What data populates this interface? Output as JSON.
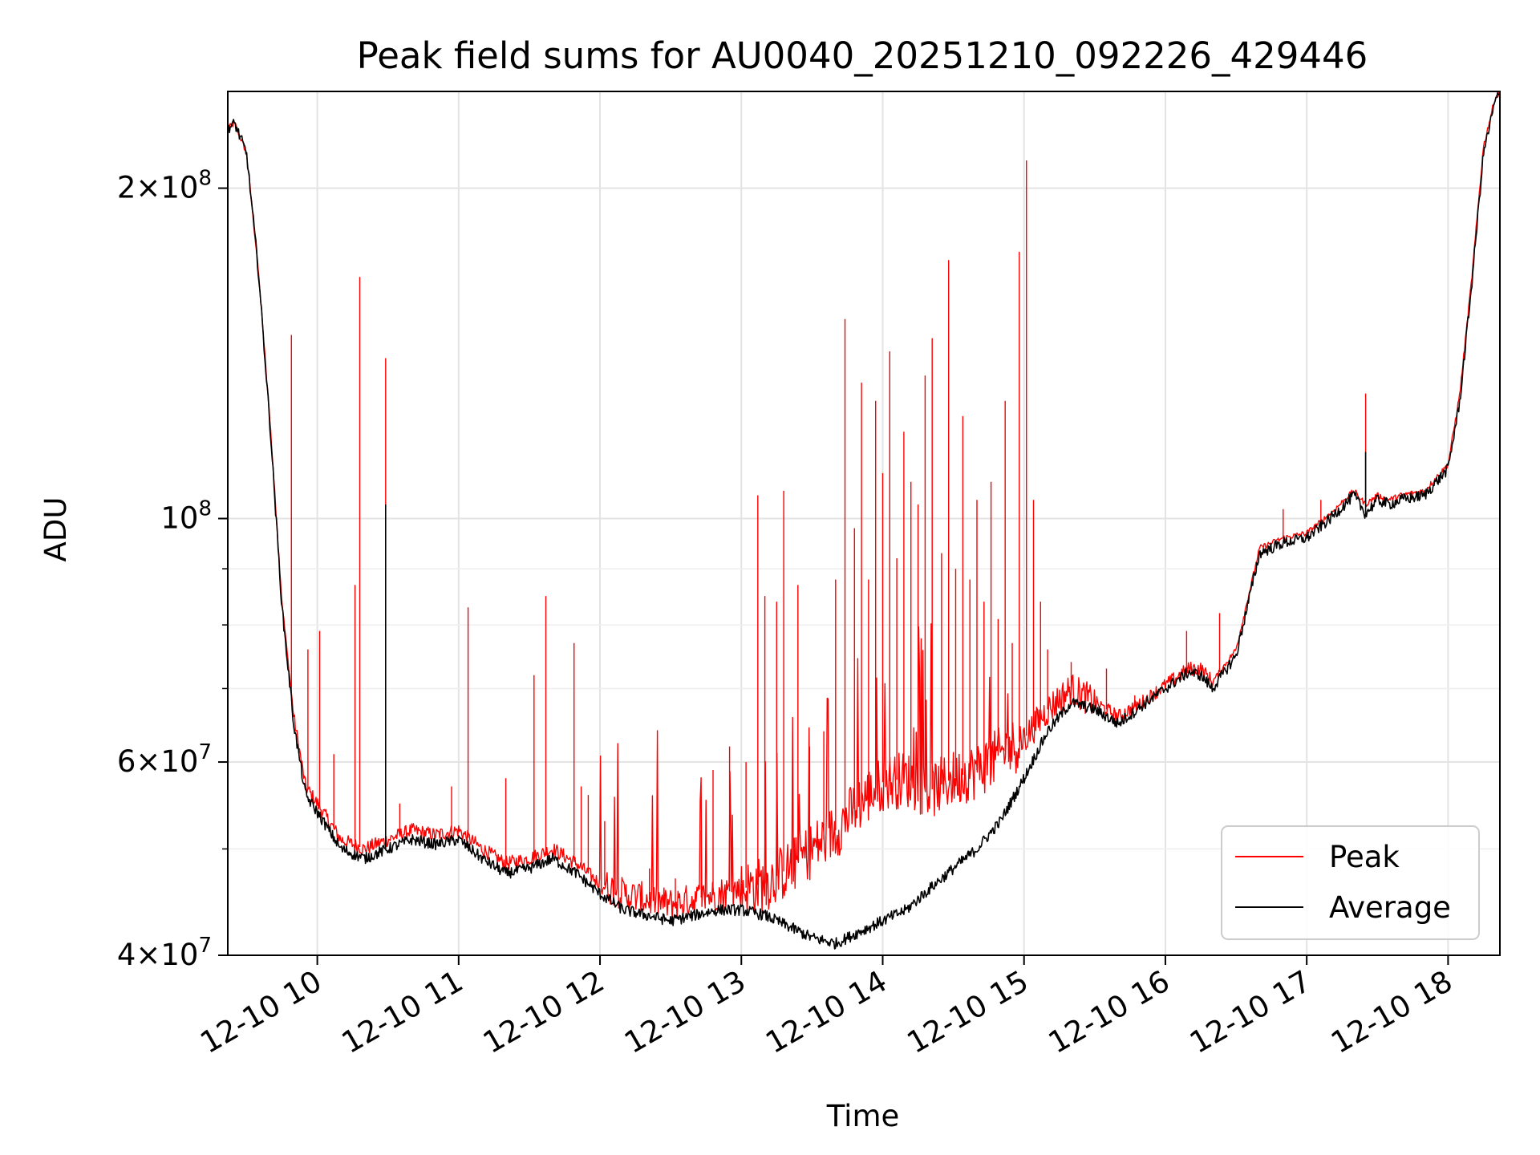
{
  "chart_data": {
    "type": "line",
    "title": "Peak field sums for AU0040_20251210_092226_429446",
    "xlabel": "Time",
    "ylabel": "ADU",
    "yscale": "log",
    "xlim": [
      "2025-12-10 09:22",
      "2025-12-10 18:22"
    ],
    "ylim": [
      40000000,
      245000000
    ],
    "grid": true,
    "legend_position": "lower-right",
    "x_tick_labels": [
      "12-10 10",
      "12-10 11",
      "12-10 12",
      "12-10 13",
      "12-10 14",
      "12-10 15",
      "12-10 16",
      "12-10 17",
      "12-10 18"
    ],
    "y_major_ticks": [
      {
        "value": 40000000,
        "mantissa": "4",
        "exponent": "7"
      },
      {
        "value": 60000000,
        "mantissa": "6",
        "exponent": "7"
      },
      {
        "value": 100000000,
        "mantissa": "",
        "exponent": "8"
      },
      {
        "value": 200000000,
        "mantissa": "2",
        "exponent": "8"
      }
    ],
    "y_minor_ticks": [
      50000000,
      70000000,
      80000000,
      90000000
    ],
    "series": [
      {
        "name": "Peak",
        "color": "#ff0000",
        "x": [
          "09:22",
          "09:25",
          "09:30",
          "09:35",
          "09:40",
          "09:45",
          "09:50",
          "09:55",
          "10:00",
          "10:10",
          "10:20",
          "10:30",
          "10:40",
          "10:50",
          "11:00",
          "11:10",
          "11:20",
          "11:30",
          "11:40",
          "11:50",
          "12:00",
          "12:10",
          "12:20",
          "12:30",
          "12:40",
          "12:50",
          "13:00",
          "13:10",
          "13:20",
          "13:30",
          "13:40",
          "13:50",
          "14:00",
          "14:10",
          "14:20",
          "14:30",
          "14:40",
          "14:50",
          "15:00",
          "15:10",
          "15:20",
          "15:30",
          "15:40",
          "15:50",
          "16:00",
          "16:10",
          "16:15",
          "16:20",
          "16:30",
          "16:40",
          "16:50",
          "17:00",
          "17:10",
          "17:20",
          "17:25",
          "17:30",
          "17:35",
          "17:40",
          "17:50",
          "18:00",
          "18:05",
          "18:10",
          "18:15",
          "18:20",
          "18:22"
        ],
        "y": [
          227000000,
          229000000,
          215000000,
          168000000,
          122000000,
          84000000,
          66000000,
          57000000,
          55000000,
          51000000,
          50000000,
          51000000,
          52000000,
          51500000,
          52000000,
          50000000,
          48500000,
          49000000,
          50000000,
          48500000,
          46500000,
          45500000,
          45000000,
          44500000,
          45000000,
          45500000,
          46000000,
          46500000,
          48000000,
          50000000,
          52000000,
          55000000,
          57500000,
          58000000,
          56500000,
          58000000,
          59000000,
          61000000,
          63000000,
          67000000,
          70000000,
          68000000,
          66000000,
          68000000,
          70500000,
          73000000,
          73000000,
          71000000,
          76000000,
          94000000,
          96000000,
          97000000,
          101000000,
          106000000,
          103000000,
          105000000,
          104000000,
          105000000,
          106000000,
          112000000,
          130000000,
          165000000,
          218000000,
          242000000,
          244000000
        ],
        "spikes": [
          [
            "09:49",
            147000000
          ],
          [
            "09:56",
            76000000
          ],
          [
            "10:01",
            79000000
          ],
          [
            "10:07",
            61000000
          ],
          [
            "10:16",
            87000000
          ],
          [
            "10:18",
            166000000
          ],
          [
            "10:29",
            140000000
          ],
          [
            "10:35",
            55000000
          ],
          [
            "10:57",
            57000000
          ],
          [
            "11:04",
            83000000
          ],
          [
            "11:20",
            58000000
          ],
          [
            "11:32",
            72000000
          ],
          [
            "11:37",
            85000000
          ],
          [
            "11:49",
            77000000
          ],
          [
            "11:52",
            57000000
          ],
          [
            "11:55",
            56000000
          ],
          [
            "12:02",
            53000000
          ],
          [
            "12:21",
            48000000
          ],
          [
            "12:32",
            47000000
          ],
          [
            "12:43",
            52000000
          ],
          [
            "12:48",
            59000000
          ],
          [
            "12:55",
            62000000
          ],
          [
            "13:02",
            60000000
          ],
          [
            "13:07",
            105000000
          ],
          [
            "13:10",
            85000000
          ],
          [
            "13:15",
            84000000
          ],
          [
            "13:18",
            106000000
          ],
          [
            "13:24",
            87000000
          ],
          [
            "13:29",
            62000000
          ],
          [
            "13:35",
            64000000
          ],
          [
            "13:40",
            88000000
          ],
          [
            "13:44",
            152000000
          ],
          [
            "13:48",
            98000000
          ],
          [
            "13:51",
            133000000
          ],
          [
            "13:54",
            88000000
          ],
          [
            "13:57",
            128000000
          ],
          [
            "14:00",
            110000000
          ],
          [
            "14:03",
            142000000
          ],
          [
            "14:06",
            92000000
          ],
          [
            "14:09",
            120000000
          ],
          [
            "14:12",
            108000000
          ],
          [
            "14:15",
            103000000
          ],
          [
            "14:18",
            135000000
          ],
          [
            "14:21",
            146000000
          ],
          [
            "14:25",
            93000000
          ],
          [
            "14:28",
            172000000
          ],
          [
            "14:31",
            90000000
          ],
          [
            "14:34",
            124000000
          ],
          [
            "14:37",
            88000000
          ],
          [
            "14:40",
            104000000
          ],
          [
            "14:43",
            84000000
          ],
          [
            "14:46",
            108000000
          ],
          [
            "14:49",
            81000000
          ],
          [
            "14:52",
            128000000
          ],
          [
            "14:55",
            77000000
          ],
          [
            "14:58",
            175000000
          ],
          [
            "15:01",
            212000000
          ],
          [
            "15:04",
            104000000
          ],
          [
            "15:07",
            84000000
          ],
          [
            "15:10",
            76000000
          ],
          [
            "15:20",
            74000000
          ],
          [
            "15:35",
            73000000
          ],
          [
            "15:47",
            69000000
          ],
          [
            "16:09",
            79000000
          ],
          [
            "16:23",
            82000000
          ],
          [
            "16:50",
            102000000
          ],
          [
            "17:06",
            104000000
          ],
          [
            "17:25",
            130000000
          ]
        ]
      },
      {
        "name": "Average",
        "color": "#000000",
        "x": [
          "09:22",
          "09:25",
          "09:30",
          "09:35",
          "09:40",
          "09:45",
          "09:50",
          "09:55",
          "10:00",
          "10:10",
          "10:20",
          "10:30",
          "10:40",
          "10:50",
          "11:00",
          "11:10",
          "11:20",
          "11:30",
          "11:40",
          "11:50",
          "12:00",
          "12:10",
          "12:20",
          "12:30",
          "12:40",
          "12:50",
          "13:00",
          "13:10",
          "13:20",
          "13:30",
          "13:40",
          "13:50",
          "14:00",
          "14:10",
          "14:20",
          "14:30",
          "14:40",
          "14:50",
          "15:00",
          "15:10",
          "15:20",
          "15:30",
          "15:40",
          "15:50",
          "16:00",
          "16:10",
          "16:15",
          "16:20",
          "16:30",
          "16:40",
          "16:50",
          "17:00",
          "17:10",
          "17:20",
          "17:25",
          "17:30",
          "17:35",
          "17:40",
          "17:50",
          "18:00",
          "18:05",
          "18:10",
          "18:15",
          "18:20",
          "18:22"
        ],
        "y": [
          227000000,
          229000000,
          215000000,
          168000000,
          121000000,
          83000000,
          65000000,
          56000000,
          54000000,
          50000000,
          49000000,
          50000000,
          51000000,
          50500000,
          51000000,
          49000000,
          47500000,
          48000000,
          49000000,
          47500000,
          45500000,
          44000000,
          43500000,
          43000000,
          43500000,
          44000000,
          44000000,
          43500000,
          42500000,
          41500000,
          41000000,
          42000000,
          43000000,
          44000000,
          46000000,
          48000000,
          50000000,
          53000000,
          58000000,
          64000000,
          68000000,
          67000000,
          65000000,
          67500000,
          70000000,
          72500000,
          72000000,
          70000000,
          75000000,
          93000000,
          95000000,
          96000000,
          100000000,
          105000000,
          101000000,
          104000000,
          103000000,
          104000000,
          105000000,
          111000000,
          128000000,
          163000000,
          215000000,
          240000000,
          244000000
        ],
        "spikes": [
          [
            "10:29",
            103000000
          ],
          [
            "17:25",
            115000000
          ]
        ]
      }
    ]
  }
}
